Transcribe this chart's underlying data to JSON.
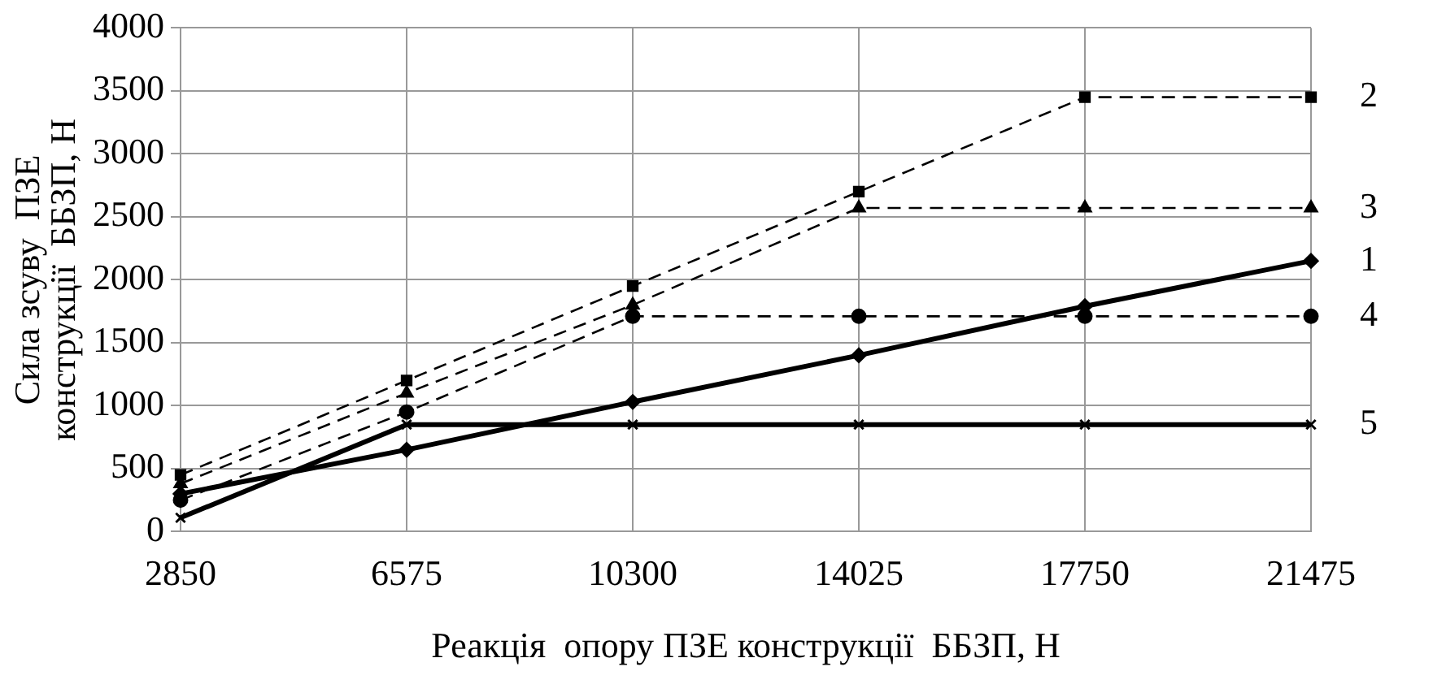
{
  "chart_data": {
    "type": "line",
    "xlabel": "Реакція  опору ПЗЕ конструкції  ББЗП, Н",
    "ylabel": "Сила зсуву  ПЗЕ конструкції  ББЗП, Н",
    "categories": [
      "2850",
      "6575",
      "10300",
      "14025",
      "17750",
      "21475"
    ],
    "ylim": [
      0,
      4000
    ],
    "yticks": [
      0,
      500,
      1000,
      1500,
      2000,
      2500,
      3000,
      3500,
      4000
    ],
    "grid": true,
    "legend": false,
    "series": [
      {
        "name": "1",
        "color": "#000000",
        "line_style": "solid",
        "marker": "diamond",
        "values": [
          300,
          650,
          1030,
          1400,
          1790,
          2150
        ]
      },
      {
        "name": "2",
        "color": "#000000",
        "line_style": "dashed",
        "marker": "square",
        "values": [
          450,
          1200,
          1950,
          2700,
          3450,
          3450
        ]
      },
      {
        "name": "3",
        "color": "#000000",
        "line_style": "dashed",
        "marker": "triangle",
        "values": [
          380,
          1100,
          1800,
          2570,
          2570,
          2570
        ]
      },
      {
        "name": "4",
        "color": "#000000",
        "line_style": "dashed",
        "marker": "circle",
        "values": [
          250,
          950,
          1710,
          1710,
          1710,
          1710
        ]
      },
      {
        "name": "5",
        "color": "#000000",
        "line_style": "solid",
        "marker": "cross",
        "values": [
          110,
          850,
          850,
          850,
          850,
          850
        ]
      }
    ]
  }
}
